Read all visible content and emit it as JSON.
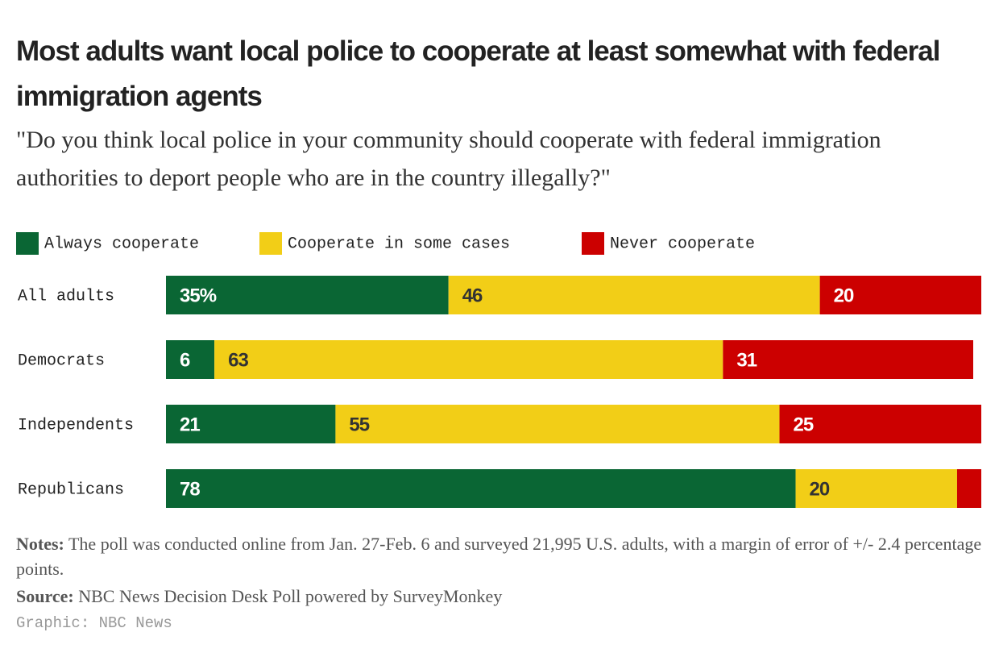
{
  "chart_data": {
    "type": "stacked-bar-horizontal",
    "title": "Most adults want local police to cooperate at least somewhat with federal immigration agents",
    "subtitle": "\"Do you think local police in your community should cooperate with federal immigration authorities to deport people who are in the country illegally?\"",
    "categories": [
      "All adults",
      "Democrats",
      "Independents",
      "Republicans"
    ],
    "series": [
      {
        "name": "Always cooperate",
        "color": "#0a6634",
        "label_color": "#ffffff",
        "values": [
          35,
          6,
          21,
          78
        ],
        "value_labels": [
          "35%",
          "6",
          "21",
          "78"
        ]
      },
      {
        "name": "Cooperate in some cases",
        "color": "#f2ce17",
        "label_color": "#333333",
        "values": [
          46,
          63,
          55,
          20
        ]
      },
      {
        "name": "Never cooperate",
        "color": "#cc0000",
        "label_color": "#ffffff",
        "values": [
          20,
          31,
          25,
          3
        ],
        "value_labels": [
          "20",
          "31",
          "25",
          null
        ]
      }
    ],
    "notes_label": "Notes:",
    "notes": "The poll was conducted online from Jan. 27-Feb. 6 and surveyed 21,995 U.S. adults, with a margin of error of +/- 2.4 percentage points.",
    "source_label": "Source:",
    "source": "NBC News Decision Desk Poll powered by SurveyMonkey",
    "credit": "Graphic: NBC News"
  }
}
